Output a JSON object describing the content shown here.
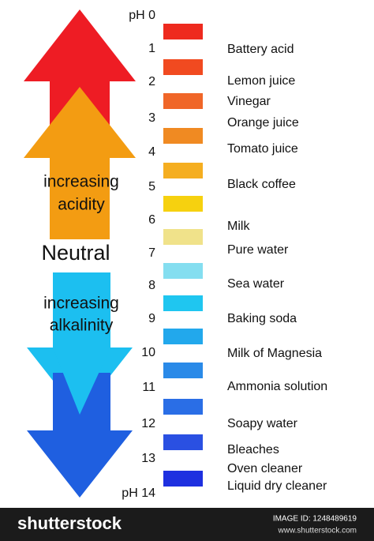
{
  "scale": {
    "labels": [
      "pH 0",
      "1",
      "2",
      "3",
      "4",
      "5",
      "6",
      "7",
      "8",
      "9",
      "10",
      "11",
      "12",
      "13",
      "pH 14"
    ]
  },
  "bar_colors": [
    "#ee2a1e",
    "#f14a20",
    "#f06628",
    "#f08a22",
    "#f5ae20",
    "#f6d10f",
    "#f0e28a",
    "#84def0",
    "#1fc6f0",
    "#22a8ec",
    "#2a8ae8",
    "#2a6ee6",
    "#2a50e2",
    "#1e30e0"
  ],
  "substances": [
    "Battery acid",
    "Lemon juice",
    "Vinegar",
    "Orange juice",
    "Tomato juice",
    "Black coffee",
    "Milk",
    "Pure water",
    "Sea water",
    "Baking soda",
    "Milk of Magnesia",
    "Ammonia solution",
    "Soapy water",
    "Bleaches",
    "Oven cleaner",
    "Liquid dry cleaner"
  ],
  "arrows": {
    "acidity": [
      "increasing",
      "acidity"
    ],
    "neutral": "Neutral",
    "alkalinity": [
      "increasing",
      "alkalinity"
    ]
  },
  "footer": {
    "logo": "shutterstock",
    "image_id": "IMAGE ID: 1248489619",
    "site": "www.shutterstock.com"
  }
}
